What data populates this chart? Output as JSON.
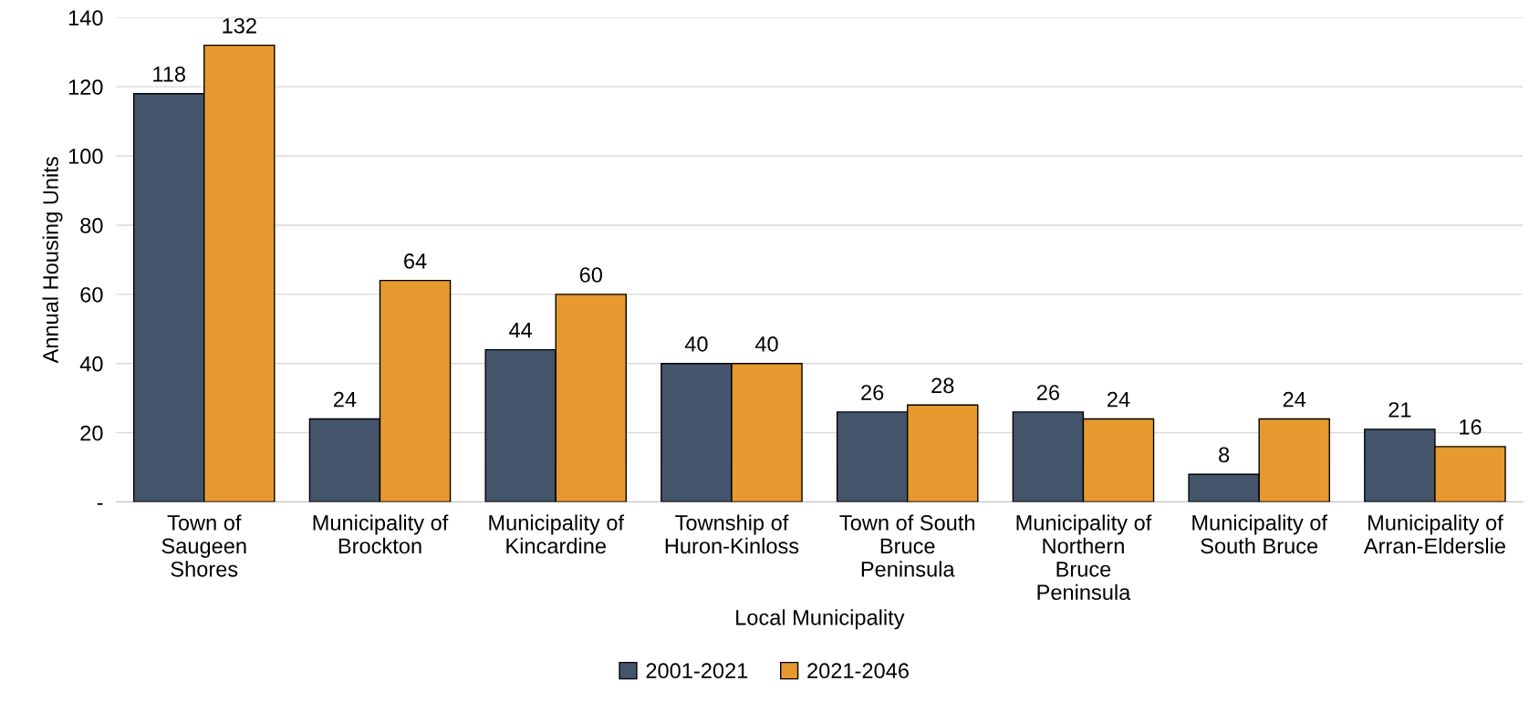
{
  "chart_data": {
    "type": "bar",
    "xlabel": "Local Municipality",
    "ylabel": "Annual Housing Units",
    "categories": [
      "Town of\nSaugeen\nShores",
      "Municipality of\nBrockton",
      "Municipality of\nKincardine",
      "Township of\nHuron-Kinloss",
      "Town of South\nBruce\nPeninsula",
      "Municipality of\nNorthern\nBruce\nPeninsula",
      "Municipality of\nSouth Bruce",
      "Municipality of\nArran-Elderslie"
    ],
    "series": [
      {
        "name": "2001-2021",
        "color": "#44546a",
        "values": [
          118,
          24,
          44,
          40,
          26,
          26,
          8,
          21
        ]
      },
      {
        "name": "2021-2046",
        "color": "#e6992f",
        "values": [
          132,
          64,
          60,
          40,
          28,
          24,
          24,
          16
        ]
      }
    ],
    "ylim": [
      0,
      140
    ],
    "yticks": [
      {
        "value": 0,
        "label": "-"
      },
      20,
      40,
      60,
      80,
      100,
      120,
      140
    ],
    "grid": "y",
    "legend": "bottom",
    "data_labels": true
  }
}
